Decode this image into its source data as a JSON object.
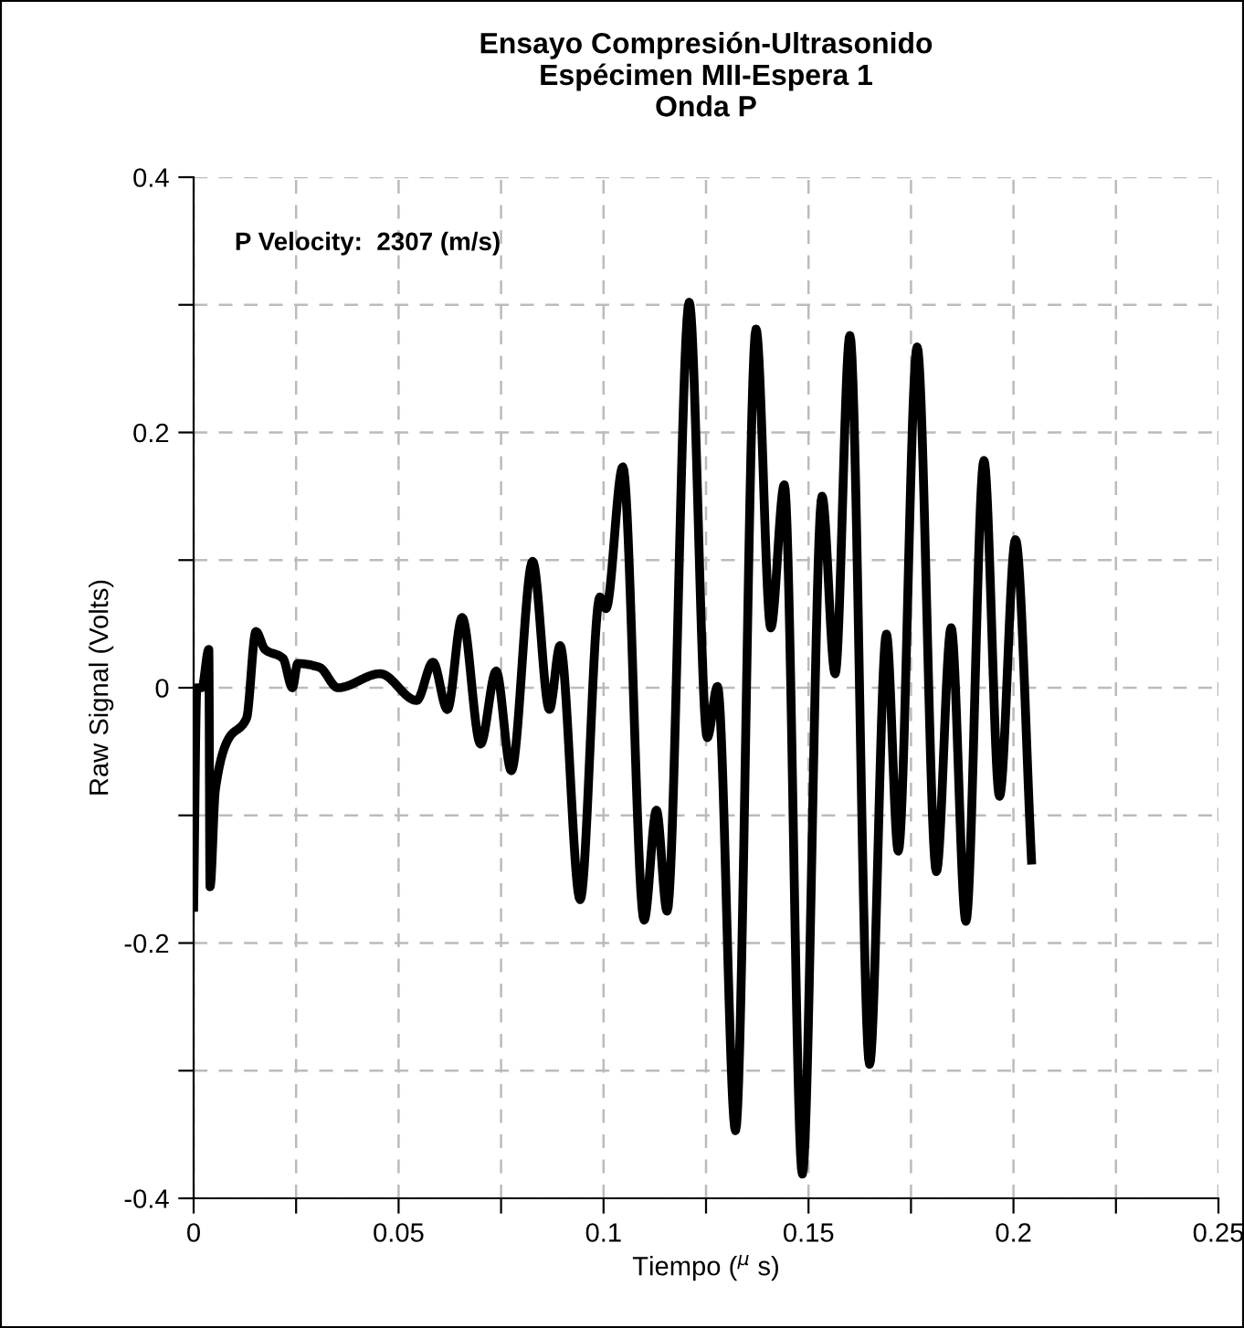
{
  "chart_data": {
    "type": "line",
    "title": "Ensayo Compresión-Ultrasonido\nEspécimen MII-Espera 1\nOnda P",
    "xlabel": "Tiempo ($^{μ}$ s)",
    "ylabel": "Raw Signal (Volts)",
    "annotations": [
      "P Velocity:  2307 (m/s)"
    ],
    "xlim": [
      0,
      0.25
    ],
    "ylim": [
      -0.4,
      0.4
    ],
    "xticks": [
      0,
      {
        "value": 0.025,
        "label": null
      },
      0.05,
      {
        "value": 0.075,
        "label": null
      },
      0.1,
      {
        "value": 0.125,
        "label": null
      },
      0.15,
      {
        "value": 0.175,
        "label": null
      },
      0.2,
      {
        "value": 0.225,
        "label": null
      },
      0.25
    ],
    "yticks": [
      -0.4,
      {
        "value": -0.3,
        "label": null
      },
      -0.2,
      {
        "value": -0.1,
        "label": null
      },
      0,
      {
        "value": 0.1,
        "label": null
      },
      0.2,
      {
        "value": 0.3,
        "label": null
      },
      0.4
    ],
    "grid": true,
    "line_style": "solid",
    "marker": "none",
    "series": [
      {
        "color": "#000000",
        "x": [
          0.0,
          0.0008,
          0.002,
          0.0037,
          0.004,
          0.0053,
          0.0085,
          0.0129,
          0.0152,
          0.0174,
          0.0218,
          0.0241,
          0.0254,
          0.0307,
          0.0352,
          0.0455,
          0.0544,
          0.0584,
          0.0619,
          0.0655,
          0.07,
          0.0738,
          0.0775,
          0.0827,
          0.0868,
          0.0894,
          0.0943,
          0.0991,
          0.1006,
          0.1047,
          0.1099,
          0.1129,
          0.1155,
          0.1209,
          0.1253,
          0.1278,
          0.1322,
          0.1372,
          0.1408,
          0.1441,
          0.1485,
          0.1533,
          0.1565,
          0.1601,
          0.1649,
          0.169,
          0.1719,
          0.1765,
          0.1812,
          0.1848,
          0.1884,
          0.1928,
          0.1966,
          0.2005,
          0.2044
        ],
        "values": [
          -0.172,
          0.0,
          0.0,
          0.03,
          -0.156,
          -0.08,
          -0.04,
          -0.024,
          0.044,
          0.03,
          0.023,
          0.0,
          0.019,
          0.016,
          0.0,
          0.011,
          -0.01,
          0.02,
          -0.017,
          0.055,
          -0.044,
          0.013,
          -0.065,
          0.099,
          -0.017,
          0.033,
          -0.166,
          0.071,
          0.062,
          0.173,
          -0.182,
          -0.096,
          -0.175,
          0.302,
          -0.039,
          0.001,
          -0.347,
          0.281,
          0.047,
          0.159,
          -0.381,
          0.15,
          0.011,
          0.276,
          -0.295,
          0.042,
          -0.128,
          0.267,
          -0.144,
          0.047,
          -0.183,
          0.178,
          -0.085,
          0.116,
          -0.135
        ]
      }
    ]
  }
}
